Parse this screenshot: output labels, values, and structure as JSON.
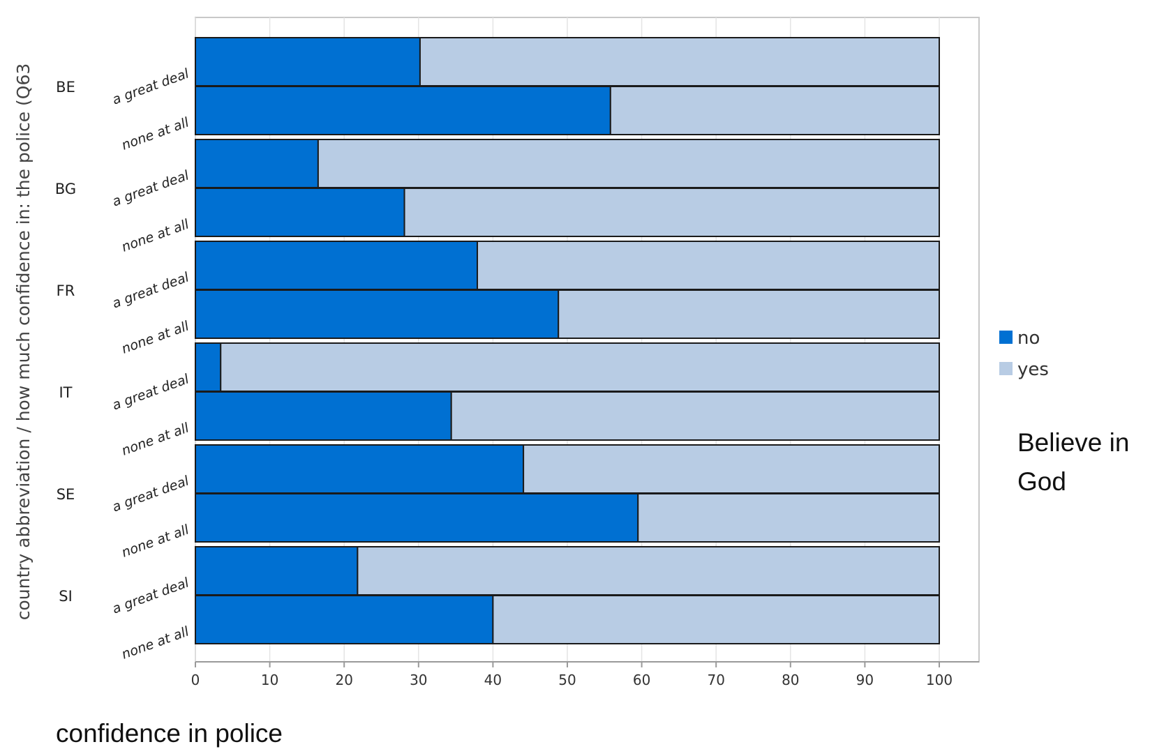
{
  "chart_data": {
    "type": "bar",
    "stacked": true,
    "orientation": "horizontal",
    "title": "",
    "xlabel": "confidence in police",
    "ylabel": "country abbreviation / how much confidence in: the police (Q63",
    "xlim": [
      0,
      100
    ],
    "x_ticks": [
      "0",
      "10",
      "20",
      "30",
      "40",
      "50",
      "60",
      "70",
      "80",
      "90",
      "100"
    ],
    "grid": true,
    "legend_position": "right",
    "legend_title": "Believe in God",
    "groups": [
      "BE",
      "BG",
      "FR",
      "IT",
      "SE",
      "SI"
    ],
    "categories": [
      "a great deal",
      "none at all"
    ],
    "series": [
      {
        "name": "no",
        "color": "#0070d2",
        "values": [
          [
            30.2,
            55.8
          ],
          [
            16.5,
            28.1
          ],
          [
            37.9,
            48.8
          ],
          [
            3.4,
            34.4
          ],
          [
            44.1,
            59.5
          ],
          [
            21.8,
            40.0
          ]
        ]
      },
      {
        "name": "yes",
        "color": "#b8cce4",
        "values": [
          [
            69.8,
            44.2
          ],
          [
            83.5,
            71.9
          ],
          [
            62.1,
            51.2
          ],
          [
            96.6,
            65.6
          ],
          [
            55.9,
            40.5
          ],
          [
            78.2,
            60.0
          ]
        ]
      }
    ]
  }
}
